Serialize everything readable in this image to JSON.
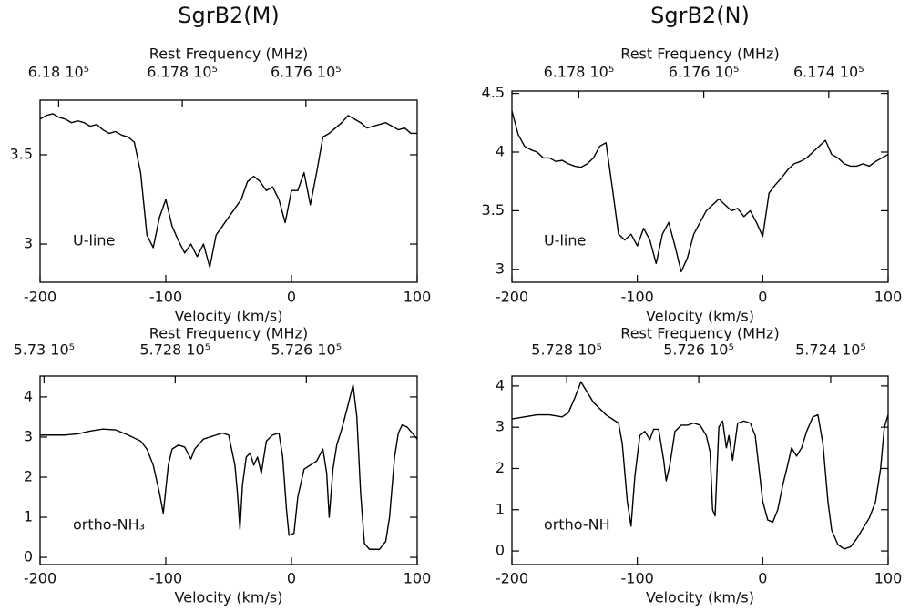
{
  "chart_data": [
    {
      "type": "line",
      "title": "SgrB2(M)",
      "x_label": "Velocity (km/s)",
      "x2_label": "Rest Frequency (MHz)",
      "annotation": "U-line",
      "color": "#000000",
      "x": [
        -200,
        -195,
        -190,
        -185,
        -180,
        -175,
        -170,
        -165,
        -160,
        -155,
        -150,
        -145,
        -140,
        -135,
        -130,
        -125,
        -120,
        -115,
        -110,
        -105,
        -100,
        -95,
        -90,
        -85,
        -80,
        -75,
        -70,
        -65,
        -60,
        -55,
        -50,
        -45,
        -40,
        -35,
        -30,
        -25,
        -20,
        -15,
        -10,
        -5,
        0,
        5,
        10,
        15,
        20,
        25,
        30,
        35,
        40,
        45,
        50,
        55,
        60,
        65,
        70,
        75,
        80,
        85,
        90,
        95,
        100
      ],
      "values": [
        3.7,
        3.72,
        3.73,
        3.71,
        3.7,
        3.68,
        3.69,
        3.68,
        3.66,
        3.67,
        3.64,
        3.62,
        3.63,
        3.61,
        3.6,
        3.57,
        3.4,
        3.05,
        2.98,
        3.15,
        3.25,
        3.1,
        3.02,
        2.95,
        3.0,
        2.93,
        3.0,
        2.87,
        3.05,
        3.1,
        3.15,
        3.2,
        3.25,
        3.35,
        3.38,
        3.35,
        3.3,
        3.32,
        3.25,
        3.12,
        3.3,
        3.3,
        3.4,
        3.22,
        3.4,
        3.6,
        3.62,
        3.65,
        3.68,
        3.72,
        3.7,
        3.68,
        3.65,
        3.66,
        3.67,
        3.68,
        3.66,
        3.64,
        3.65,
        3.62,
        3.62
      ],
      "xlim": [
        -200,
        100
      ],
      "xticks": [
        -200,
        -100,
        0,
        100
      ],
      "ylim": [
        2.786,
        3.806
      ],
      "yticks": [
        3,
        3.5
      ],
      "x2lim": [
        618030,
        617420
      ],
      "x2ticks": [
        {
          "value": 618000,
          "label": "6.18 10⁵"
        },
        {
          "value": 617800,
          "label": "6.178 10⁵"
        },
        {
          "value": 617600,
          "label": "6.176 10⁵"
        }
      ]
    },
    {
      "type": "line",
      "title": "SgrB2(N)",
      "x_label": "Velocity (km/s)",
      "x2_label": "Rest Frequency (MHz)",
      "annotation": "U-line",
      "color": "#000000",
      "x": [
        -200,
        -195,
        -190,
        -185,
        -180,
        -175,
        -170,
        -165,
        -160,
        -155,
        -150,
        -145,
        -140,
        -135,
        -130,
        -125,
        -120,
        -115,
        -110,
        -105,
        -100,
        -95,
        -90,
        -85,
        -80,
        -75,
        -70,
        -65,
        -60,
        -55,
        -50,
        -45,
        -40,
        -35,
        -30,
        -25,
        -20,
        -15,
        -10,
        -5,
        0,
        5,
        10,
        15,
        20,
        25,
        30,
        35,
        40,
        45,
        50,
        55,
        60,
        65,
        70,
        75,
        80,
        85,
        90,
        95,
        100
      ],
      "values": [
        4.35,
        4.15,
        4.05,
        4.02,
        4.0,
        3.95,
        3.95,
        3.92,
        3.93,
        3.9,
        3.88,
        3.87,
        3.9,
        3.95,
        4.05,
        4.08,
        3.7,
        3.3,
        3.25,
        3.3,
        3.2,
        3.35,
        3.25,
        3.05,
        3.3,
        3.4,
        3.2,
        2.98,
        3.1,
        3.3,
        3.4,
        3.5,
        3.55,
        3.6,
        3.55,
        3.5,
        3.52,
        3.45,
        3.5,
        3.4,
        3.28,
        3.65,
        3.72,
        3.78,
        3.85,
        3.9,
        3.92,
        3.95,
        4.0,
        4.05,
        4.1,
        3.98,
        3.95,
        3.9,
        3.88,
        3.88,
        3.9,
        3.88,
        3.92,
        3.95,
        3.98
      ],
      "xlim": [
        -200,
        100
      ],
      "xticks": [
        -200,
        -100,
        0,
        100
      ],
      "ylim": [
        2.89,
        4.52
      ],
      "yticks": [
        3,
        3.5,
        4,
        4.5
      ],
      "x2lim": [
        617907,
        617305
      ],
      "x2ticks": [
        {
          "value": 617800,
          "label": "6.178 10⁵"
        },
        {
          "value": 617600,
          "label": "6.176 10⁵"
        },
        {
          "value": 617400,
          "label": "6.174 10⁵"
        }
      ]
    },
    {
      "type": "line",
      "x_label": "Velocity (km/s)",
      "x2_label": "Rest Frequency (MHz)",
      "annotation": "ortho-NH₃",
      "color": "#000000",
      "x": [
        -200,
        -190,
        -180,
        -170,
        -160,
        -150,
        -140,
        -130,
        -120,
        -115,
        -110,
        -105,
        -102,
        -98,
        -95,
        -90,
        -85,
        -80,
        -77,
        -70,
        -65,
        -60,
        -55,
        -50,
        -47,
        -45,
        -43,
        -41,
        -39,
        -36,
        -33,
        -30,
        -27,
        -24,
        -20,
        -15,
        -10,
        -7,
        -4,
        -2,
        2,
        5,
        10,
        15,
        20,
        25,
        28,
        30,
        33,
        36,
        40,
        45,
        49,
        52,
        55,
        58,
        62,
        70,
        75,
        78,
        82,
        85,
        88,
        92,
        96,
        100
      ],
      "values": [
        3.05,
        3.05,
        3.05,
        3.08,
        3.15,
        3.2,
        3.18,
        3.05,
        2.9,
        2.7,
        2.3,
        1.6,
        1.1,
        2.3,
        2.7,
        2.8,
        2.75,
        2.45,
        2.7,
        2.95,
        3.0,
        3.05,
        3.1,
        3.05,
        2.6,
        2.3,
        1.6,
        0.7,
        1.8,
        2.5,
        2.6,
        2.3,
        2.5,
        2.1,
        2.9,
        3.05,
        3.1,
        2.5,
        1.2,
        0.55,
        0.6,
        1.5,
        2.2,
        2.3,
        2.4,
        2.7,
        2.1,
        1.0,
        2.2,
        2.8,
        3.2,
        3.8,
        4.3,
        3.5,
        1.6,
        0.35,
        0.2,
        0.2,
        0.4,
        1.0,
        2.5,
        3.1,
        3.3,
        3.25,
        3.1,
        2.95
      ],
      "xlim": [
        -200,
        100
      ],
      "xticks": [
        -200,
        -100,
        0,
        100
      ],
      "ylim": [
        -0.18,
        4.52
      ],
      "yticks": [
        0,
        1,
        2,
        3,
        4
      ],
      "x2lim": [
        573006,
        572431
      ],
      "x2ticks": [
        {
          "value": 573000,
          "label": "5.73 10⁵"
        },
        {
          "value": 572800,
          "label": "5.728 10⁵"
        },
        {
          "value": 572600,
          "label": "5.726 10⁵"
        }
      ]
    },
    {
      "type": "line",
      "x_label": "Velocity (km/s)",
      "x2_label": "Rest Frequency (MHz)",
      "annotation": "ortho-NH",
      "color": "#000000",
      "x": [
        -200,
        -190,
        -180,
        -170,
        -160,
        -155,
        -150,
        -145,
        -140,
        -135,
        -130,
        -125,
        -120,
        -115,
        -112,
        -108,
        -105,
        -102,
        -98,
        -94,
        -90,
        -87,
        -83,
        -79,
        -77,
        -74,
        -70,
        -65,
        -60,
        -55,
        -50,
        -45,
        -42,
        -40,
        -38,
        -35,
        -32,
        -29,
        -27,
        -24,
        -20,
        -15,
        -10,
        -6,
        -3,
        0,
        4,
        8,
        12,
        16,
        20,
        23,
        27,
        31,
        35,
        40,
        44,
        48,
        52,
        55,
        60,
        65,
        70,
        75,
        80,
        85,
        90,
        94,
        97,
        100
      ],
      "values": [
        3.2,
        3.25,
        3.3,
        3.3,
        3.25,
        3.35,
        3.7,
        4.1,
        3.85,
        3.6,
        3.45,
        3.3,
        3.2,
        3.1,
        2.6,
        1.2,
        0.6,
        1.8,
        2.8,
        2.9,
        2.7,
        2.95,
        2.95,
        2.2,
        1.7,
        2.1,
        2.9,
        3.05,
        3.05,
        3.1,
        3.05,
        2.8,
        2.4,
        1.0,
        0.85,
        3.0,
        3.15,
        2.5,
        2.8,
        2.2,
        3.1,
        3.15,
        3.1,
        2.8,
        2.0,
        1.2,
        0.75,
        0.7,
        1.0,
        1.6,
        2.1,
        2.5,
        2.3,
        2.5,
        2.9,
        3.25,
        3.3,
        2.6,
        1.2,
        0.5,
        0.15,
        0.05,
        0.1,
        0.3,
        0.55,
        0.8,
        1.2,
        2.0,
        3.0,
        3.3
      ],
      "xlim": [
        -200,
        100
      ],
      "xticks": [
        -200,
        -100,
        0,
        100
      ],
      "ylim": [
        -0.33,
        4.24
      ],
      "yticks": [
        0,
        1,
        2,
        3,
        4
      ],
      "x2lim": [
        572883,
        572313
      ],
      "x2ticks": [
        {
          "value": 572800,
          "label": "5.728 10⁵"
        },
        {
          "value": 572600,
          "label": "5.726 10⁵"
        },
        {
          "value": 572400,
          "label": "5.724 10⁵"
        }
      ]
    }
  ]
}
